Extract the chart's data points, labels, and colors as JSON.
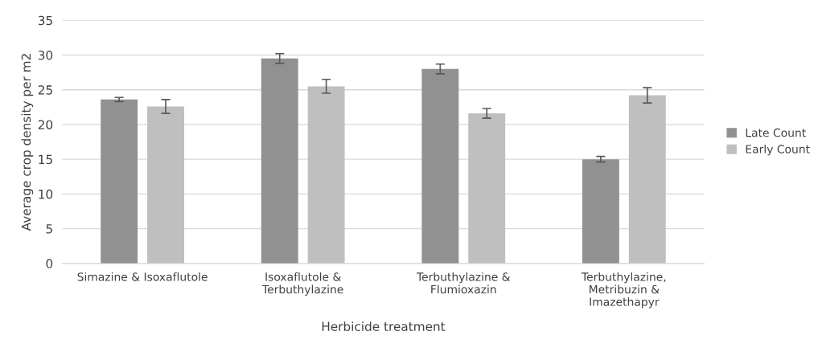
{
  "chart_data": {
    "type": "bar",
    "xlabel": "Herbicide treatment",
    "ylabel": "Average crop density per m2",
    "categories": [
      "Simazine & Isoxaflutole",
      "Isoxaflutole &\nTerbuthylazine",
      "Terbuthylazine &\nFlumioxazin",
      "Terbuthylazine,\nMetribuzin &\nImazethapyr"
    ],
    "series": [
      {
        "name": "Late Count",
        "color": "#919191",
        "values": [
          23.6,
          29.5,
          28.0,
          15.0
        ],
        "errors": [
          0.3,
          0.7,
          0.7,
          0.4
        ]
      },
      {
        "name": "Early Count",
        "color": "#bfbfbf",
        "values": [
          22.6,
          25.5,
          21.6,
          24.2
        ],
        "errors": [
          1.0,
          1.0,
          0.7,
          1.1
        ]
      }
    ],
    "ylim": [
      0,
      35
    ],
    "yticks": [
      0,
      5,
      10,
      15,
      20,
      25,
      30,
      35
    ],
    "grid": "y",
    "legend": "right"
  }
}
